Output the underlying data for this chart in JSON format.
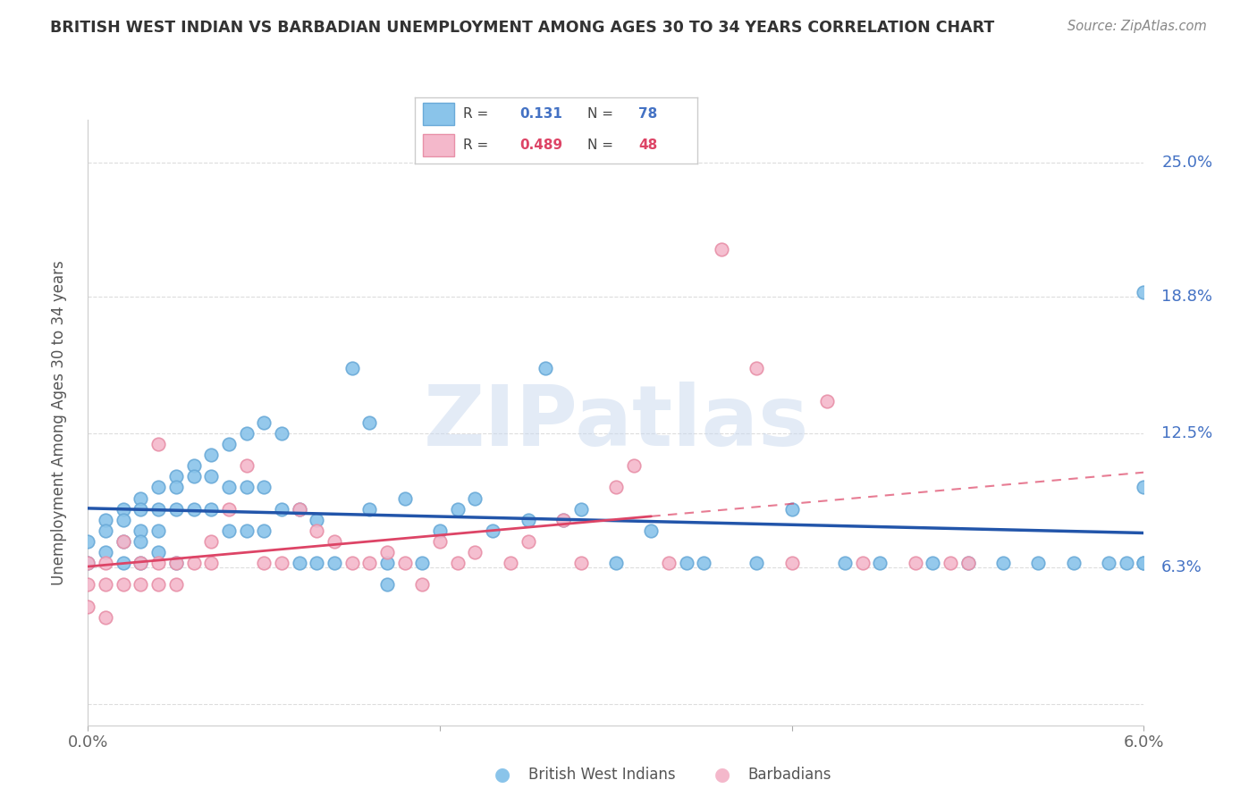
{
  "title": "BRITISH WEST INDIAN VS BARBADIAN UNEMPLOYMENT AMONG AGES 30 TO 34 YEARS CORRELATION CHART",
  "source": "Source: ZipAtlas.com",
  "xlim": [
    0.0,
    0.06
  ],
  "ylim": [
    -0.01,
    0.27
  ],
  "ylabel_ticks": [
    0.0,
    0.063,
    0.125,
    0.188,
    0.25
  ],
  "ylabel_labels": [
    "",
    "6.3%",
    "12.5%",
    "18.8%",
    "25.0%"
  ],
  "watermark": "ZIPatlas",
  "series1_name": "British West Indians",
  "series1_color": "#8ac4ea",
  "series1_edge": "#6aaad8",
  "series2_name": "Barbadians",
  "series2_color": "#f4b8cb",
  "series2_edge": "#e890a8",
  "series1_R": "0.131",
  "series1_N": "78",
  "series2_R": "0.489",
  "series2_N": "48",
  "line1_color": "#2255aa",
  "line2_color": "#dd4466",
  "title_color": "#333333",
  "source_color": "#888888",
  "ylabel_color": "#4472c4",
  "axis_label_color": "#555555",
  "grid_color": "#dddddd",
  "series1_x": [
    0.0,
    0.0,
    0.001,
    0.001,
    0.001,
    0.002,
    0.002,
    0.002,
    0.002,
    0.003,
    0.003,
    0.003,
    0.003,
    0.003,
    0.004,
    0.004,
    0.004,
    0.004,
    0.005,
    0.005,
    0.005,
    0.005,
    0.006,
    0.006,
    0.006,
    0.007,
    0.007,
    0.007,
    0.008,
    0.008,
    0.008,
    0.009,
    0.009,
    0.009,
    0.01,
    0.01,
    0.01,
    0.011,
    0.011,
    0.012,
    0.012,
    0.013,
    0.013,
    0.014,
    0.015,
    0.016,
    0.016,
    0.017,
    0.017,
    0.018,
    0.019,
    0.02,
    0.021,
    0.022,
    0.023,
    0.025,
    0.026,
    0.027,
    0.028,
    0.03,
    0.032,
    0.034,
    0.035,
    0.038,
    0.04,
    0.043,
    0.045,
    0.048,
    0.05,
    0.052,
    0.054,
    0.056,
    0.058,
    0.059,
    0.06,
    0.06,
    0.06,
    0.06
  ],
  "series1_y": [
    0.075,
    0.065,
    0.085,
    0.08,
    0.07,
    0.09,
    0.085,
    0.075,
    0.065,
    0.095,
    0.09,
    0.08,
    0.075,
    0.065,
    0.1,
    0.09,
    0.08,
    0.07,
    0.105,
    0.1,
    0.09,
    0.065,
    0.11,
    0.105,
    0.09,
    0.115,
    0.105,
    0.09,
    0.12,
    0.1,
    0.08,
    0.125,
    0.1,
    0.08,
    0.13,
    0.1,
    0.08,
    0.125,
    0.09,
    0.09,
    0.065,
    0.085,
    0.065,
    0.065,
    0.155,
    0.13,
    0.09,
    0.065,
    0.055,
    0.095,
    0.065,
    0.08,
    0.09,
    0.095,
    0.08,
    0.085,
    0.155,
    0.085,
    0.09,
    0.065,
    0.08,
    0.065,
    0.065,
    0.065,
    0.09,
    0.065,
    0.065,
    0.065,
    0.065,
    0.065,
    0.065,
    0.065,
    0.065,
    0.065,
    0.065,
    0.065,
    0.1,
    0.19
  ],
  "series2_x": [
    0.0,
    0.0,
    0.0,
    0.001,
    0.001,
    0.001,
    0.002,
    0.002,
    0.003,
    0.003,
    0.004,
    0.004,
    0.004,
    0.005,
    0.005,
    0.006,
    0.007,
    0.007,
    0.008,
    0.009,
    0.01,
    0.011,
    0.012,
    0.013,
    0.014,
    0.015,
    0.016,
    0.017,
    0.018,
    0.019,
    0.02,
    0.021,
    0.022,
    0.024,
    0.025,
    0.027,
    0.028,
    0.03,
    0.031,
    0.033,
    0.036,
    0.038,
    0.04,
    0.042,
    0.044,
    0.047,
    0.049,
    0.05
  ],
  "series2_y": [
    0.065,
    0.055,
    0.045,
    0.065,
    0.055,
    0.04,
    0.075,
    0.055,
    0.065,
    0.055,
    0.12,
    0.065,
    0.055,
    0.065,
    0.055,
    0.065,
    0.075,
    0.065,
    0.09,
    0.11,
    0.065,
    0.065,
    0.09,
    0.08,
    0.075,
    0.065,
    0.065,
    0.07,
    0.065,
    0.055,
    0.075,
    0.065,
    0.07,
    0.065,
    0.075,
    0.085,
    0.065,
    0.1,
    0.11,
    0.065,
    0.21,
    0.155,
    0.065,
    0.14,
    0.065,
    0.065,
    0.065,
    0.065
  ],
  "legend_R1_color": "#4472c4",
  "legend_N1_color": "#4472c4",
  "legend_R2_color": "#dd4466",
  "legend_N2_color": "#dd4466"
}
